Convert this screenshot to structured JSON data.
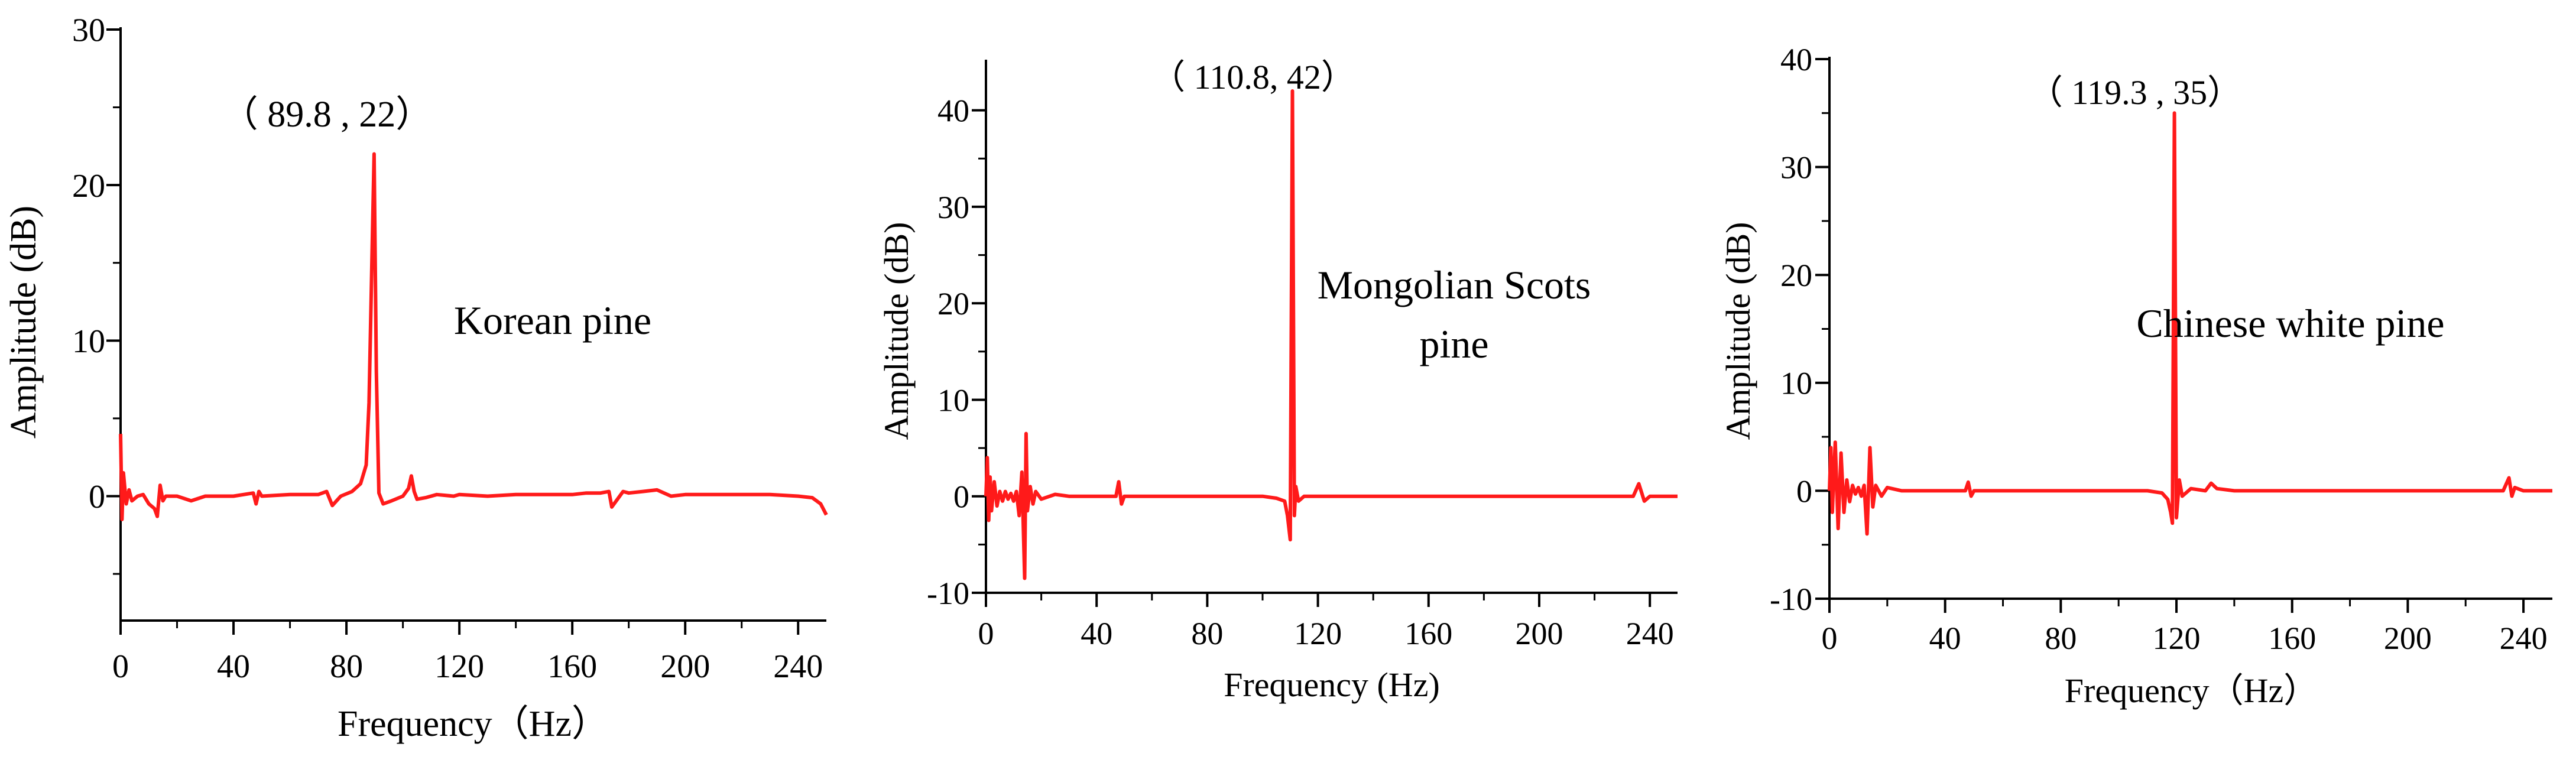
{
  "chart_data": [
    {
      "type": "line",
      "xlabel": "Frequency（Hz）",
      "ylabel": "Amplitude (dB)",
      "xlim": [
        0,
        250
      ],
      "ylim": [
        -8,
        30
      ],
      "xticks": [
        0,
        40,
        80,
        120,
        160,
        200,
        240
      ],
      "yticks": [
        0,
        10,
        20,
        30
      ],
      "grid": false,
      "series": [
        {
          "color": "#ff1a1a",
          "x": [
            0,
            0.5,
            1,
            2,
            3,
            4,
            6,
            8,
            10,
            12,
            13,
            14,
            15,
            16,
            18,
            20,
            25,
            30,
            40,
            47,
            48,
            49,
            50,
            60,
            70,
            73,
            75,
            78,
            82,
            85,
            87,
            88,
            89,
            89.8,
            90.6,
            91.5,
            93,
            96,
            100,
            102,
            103,
            104,
            105,
            108,
            112,
            118,
            120,
            130,
            140,
            150,
            160,
            165,
            170,
            173,
            174,
            176,
            178,
            180,
            185,
            190,
            195,
            200,
            210,
            220,
            230,
            240,
            245,
            248,
            250
          ],
          "y": [
            4,
            -1.5,
            1.5,
            -0.5,
            0.4,
            -0.3,
            0,
            0.1,
            -0.5,
            -0.8,
            -1.3,
            0.7,
            -0.3,
            0,
            0,
            0,
            -0.3,
            0,
            0,
            0.2,
            -0.5,
            0.3,
            0,
            0.1,
            0.1,
            0.3,
            -0.6,
            0,
            0.3,
            0.8,
            2,
            6,
            15,
            22,
            8,
            0.2,
            -0.5,
            -0.3,
            0,
            0.5,
            1.3,
            0.3,
            -0.2,
            -0.1,
            0.1,
            0,
            0.1,
            0,
            0.1,
            0.1,
            0.1,
            0.2,
            0.2,
            0.3,
            -0.7,
            -0.2,
            0.3,
            0.2,
            0.3,
            0.4,
            0,
            0.1,
            0.1,
            0.1,
            0.1,
            0,
            -0.1,
            -0.5,
            -1.2
          ]
        }
      ],
      "annotations": [
        {
          "text": "（ 89.8 , 22）",
          "x": 89.8,
          "y": 22
        },
        {
          "text": "Korean pine"
        }
      ]
    },
    {
      "type": "line",
      "xlabel": "Frequency (Hz)",
      "ylabel": "Amplitude (dB)",
      "xlim": [
        0,
        250
      ],
      "ylim": [
        -10,
        45
      ],
      "xticks": [
        0,
        40,
        80,
        120,
        160,
        200,
        240
      ],
      "yticks": [
        -10,
        0,
        10,
        20,
        30,
        40
      ],
      "grid": false,
      "series": [
        {
          "color": "#ff1a1a",
          "x": [
            0,
            0.5,
            1,
            1.5,
            2,
            3,
            4,
            5,
            6,
            7,
            8,
            9,
            10,
            11,
            12,
            13,
            14,
            14.5,
            15,
            16,
            17,
            18,
            20,
            25,
            30,
            40,
            47,
            48,
            49,
            50,
            60,
            70,
            80,
            90,
            100,
            105,
            108,
            109,
            110,
            110.8,
            111.5,
            112,
            113,
            115,
            120,
            130,
            140,
            160,
            180,
            200,
            220,
            234,
            236,
            238,
            240,
            250
          ],
          "y": [
            0,
            4,
            -2.5,
            2,
            -1.5,
            1.5,
            -1,
            0.5,
            -0.5,
            0.5,
            -0.3,
            0.3,
            -0.5,
            0.5,
            -2,
            2.5,
            -8.5,
            6.5,
            -1.5,
            1,
            -0.8,
            0.5,
            -0.3,
            0.2,
            0,
            0,
            0,
            1.5,
            -0.8,
            0,
            0,
            0,
            0,
            0,
            0,
            -0.2,
            -0.5,
            -2,
            -4.5,
            42,
            -2,
            1,
            -0.5,
            0,
            0,
            0,
            0,
            0,
            0,
            0,
            0,
            0,
            1.3,
            -0.5,
            0,
            0
          ]
        }
      ],
      "annotations": [
        {
          "text": "（ 110.8,  42）",
          "x": 110.8,
          "y": 42
        },
        {
          "text": "Mongolian Scots"
        },
        {
          "text": "pine"
        }
      ]
    },
    {
      "type": "line",
      "xlabel": "Frequency（Hz）",
      "ylabel": "Amplitude (dB)",
      "xlim": [
        0,
        250
      ],
      "ylim": [
        -10,
        40
      ],
      "xticks": [
        0,
        40,
        80,
        120,
        160,
        200,
        240
      ],
      "yticks": [
        -10,
        0,
        10,
        20,
        30,
        40
      ],
      "grid": false,
      "series": [
        {
          "color": "#ff1a1a",
          "x": [
            0,
            0.5,
            1,
            2,
            3,
            4,
            5,
            6,
            7,
            8,
            9,
            10,
            11,
            12,
            13,
            14,
            15,
            16,
            18,
            20,
            25,
            30,
            40,
            47,
            48,
            49,
            50,
            60,
            70,
            80,
            90,
            100,
            110,
            115,
            117,
            118,
            118.6,
            119.3,
            120,
            121,
            122,
            125,
            130,
            132,
            134,
            140,
            160,
            180,
            200,
            220,
            233,
            235,
            236,
            237,
            240,
            250
          ],
          "y": [
            0,
            4,
            -2,
            4.5,
            -3.5,
            3.5,
            -2,
            1,
            -1,
            0.5,
            -0.3,
            0.3,
            -0.5,
            0.5,
            -4,
            4,
            -1.5,
            0.5,
            -0.5,
            0.3,
            0,
            0,
            0,
            0,
            0.8,
            -0.5,
            0,
            0,
            0,
            0,
            0,
            0,
            0,
            -0.2,
            -0.8,
            -2,
            -3,
            35,
            -2.5,
            1,
            -0.5,
            0.2,
            0,
            0.7,
            0.2,
            0,
            0,
            0,
            0,
            0,
            0,
            1.2,
            -0.5,
            0.3,
            0,
            0
          ]
        }
      ],
      "annotations": [
        {
          "text": "（ 119.3 , 35）",
          "x": 119.3,
          "y": 35
        },
        {
          "text": "Chinese white pine"
        }
      ]
    }
  ]
}
